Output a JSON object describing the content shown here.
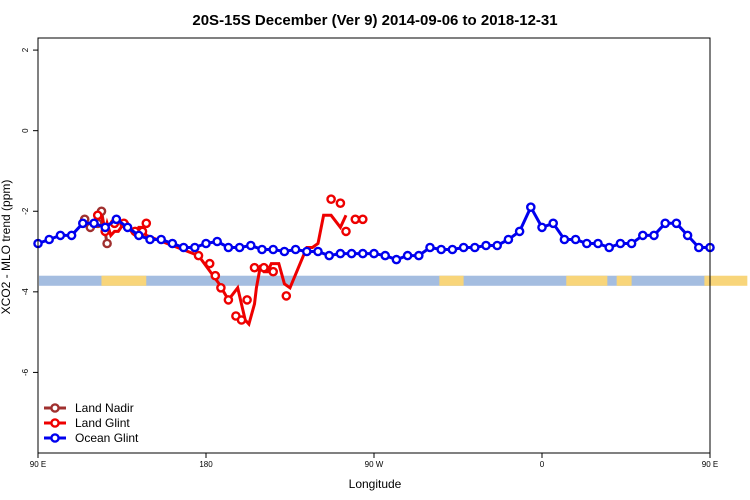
{
  "chart_data": {
    "type": "line",
    "title": "20S-15S December (Ver 9)   2014-09-06 to 2018-12-31",
    "xlabel": "Longitude",
    "ylabel": "XCO2 - MLO trend (ppm)",
    "xlim": [
      90,
      450
    ],
    "ylim": [
      -8,
      2.3
    ],
    "x_ticks": [
      {
        "value": 90,
        "label": "90 E"
      },
      {
        "value": 180,
        "label": "180"
      },
      {
        "value": 270,
        "label": "90 W"
      },
      {
        "value": 360,
        "label": "0"
      },
      {
        "value": 450,
        "label": "90 E"
      },
      {
        "value": 540,
        "label": "180"
      }
    ],
    "y_ticks": [
      {
        "value": 2,
        "label": "2"
      },
      {
        "value": 0,
        "label": "0"
      },
      {
        "value": -2,
        "label": "-2"
      },
      {
        "value": -4,
        "label": "-4"
      },
      {
        "value": -6,
        "label": "-6"
      }
    ],
    "grid": false,
    "legend_position": "bottom-left",
    "surface_strip": {
      "y_range": [
        -3.85,
        -3.6
      ],
      "ocean_color": "#a4bde0",
      "land_color": "#f8d57a",
      "land_segments": [
        [
          124,
          148
        ],
        [
          305,
          318
        ],
        [
          373,
          395
        ],
        [
          400,
          408
        ],
        [
          447,
          470
        ]
      ]
    },
    "series": [
      {
        "name": "Land Nadir",
        "color": "#a0302f",
        "x": [
          115,
          118,
          122,
          124,
          127
        ],
        "y": [
          -2.2,
          -2.4,
          -2.3,
          -2.0,
          -2.8
        ]
      },
      {
        "name": "Land Glint",
        "color": "#ee0000",
        "x": [
          124,
          125,
          126,
          127,
          129,
          131,
          133,
          136,
          138,
          140,
          142,
          144,
          146,
          148,
          176,
          187,
          192,
          197,
          201,
          203,
          206,
          207,
          209,
          211,
          213,
          215,
          219,
          222,
          225,
          234,
          237,
          240,
          243,
          247,
          252,
          255
        ],
        "y": [
          -2.1,
          -2.3,
          -2.5,
          -2.3,
          -2.6,
          -2.5,
          -2.5,
          -2.3,
          -2.3,
          -2.5,
          -2.6,
          -2.4,
          -2.4,
          -2.6,
          -3.1,
          -3.8,
          -4.2,
          -3.9,
          -4.7,
          -4.8,
          -4.3,
          -3.9,
          -3.4,
          -3.5,
          -3.5,
          -3.3,
          -3.3,
          -3.8,
          -3.9,
          -2.9,
          -2.9,
          -2.8,
          -2.1,
          -2.1,
          -2.4,
          -2.1
        ],
        "pts_x": [
          122,
          126,
          131,
          136,
          142,
          146,
          148,
          176,
          182,
          185,
          188,
          192,
          196,
          199,
          202,
          206,
          211,
          216,
          223,
          247,
          252,
          255,
          260,
          264
        ],
        "pts_y": [
          -2.1,
          -2.5,
          -2.3,
          -2.3,
          -2.5,
          -2.5,
          -2.3,
          -3.1,
          -3.3,
          -3.6,
          -3.9,
          -4.2,
          -4.6,
          -4.7,
          -4.2,
          -3.4,
          -3.4,
          -3.5,
          -4.1,
          -1.7,
          -1.8,
          -2.5,
          -2.2,
          -2.2
        ]
      },
      {
        "name": "Ocean Glint",
        "color": "#0000ee",
        "x": [
          90,
          96,
          102,
          108,
          114,
          120,
          126,
          132,
          138,
          144,
          150,
          156,
          162,
          168,
          174,
          180,
          186,
          192,
          198,
          204,
          210,
          216,
          222,
          228,
          234,
          240,
          246,
          252,
          258,
          264,
          270,
          276,
          282,
          288,
          294,
          300,
          306,
          312,
          318,
          324,
          330,
          336,
          342,
          348,
          354,
          360,
          366,
          372,
          378,
          384,
          390,
          396,
          402,
          408,
          414,
          420,
          426,
          432,
          438,
          444,
          450
        ],
        "y": [
          -2.8,
          -2.7,
          -2.6,
          -2.6,
          -2.3,
          -2.3,
          -2.4,
          -2.2,
          -2.4,
          -2.6,
          -2.7,
          -2.7,
          -2.8,
          -2.9,
          -2.9,
          -2.8,
          -2.75,
          -2.9,
          -2.9,
          -2.85,
          -2.95,
          -2.95,
          -3.0,
          -2.95,
          -3.0,
          -3.0,
          -3.1,
          -3.05,
          -3.05,
          -3.05,
          -3.05,
          -3.1,
          -3.2,
          -3.1,
          -3.1,
          -2.9,
          -2.95,
          -2.95,
          -2.9,
          -2.9,
          -2.85,
          -2.85,
          -2.7,
          -2.5,
          -1.9,
          -2.4,
          -2.3,
          -2.7,
          -2.7,
          -2.8,
          -2.8,
          -2.9,
          -2.8,
          -2.8,
          -2.6,
          -2.6,
          -2.3,
          -2.3,
          -2.6,
          -2.9,
          -2.9
        ]
      }
    ]
  }
}
